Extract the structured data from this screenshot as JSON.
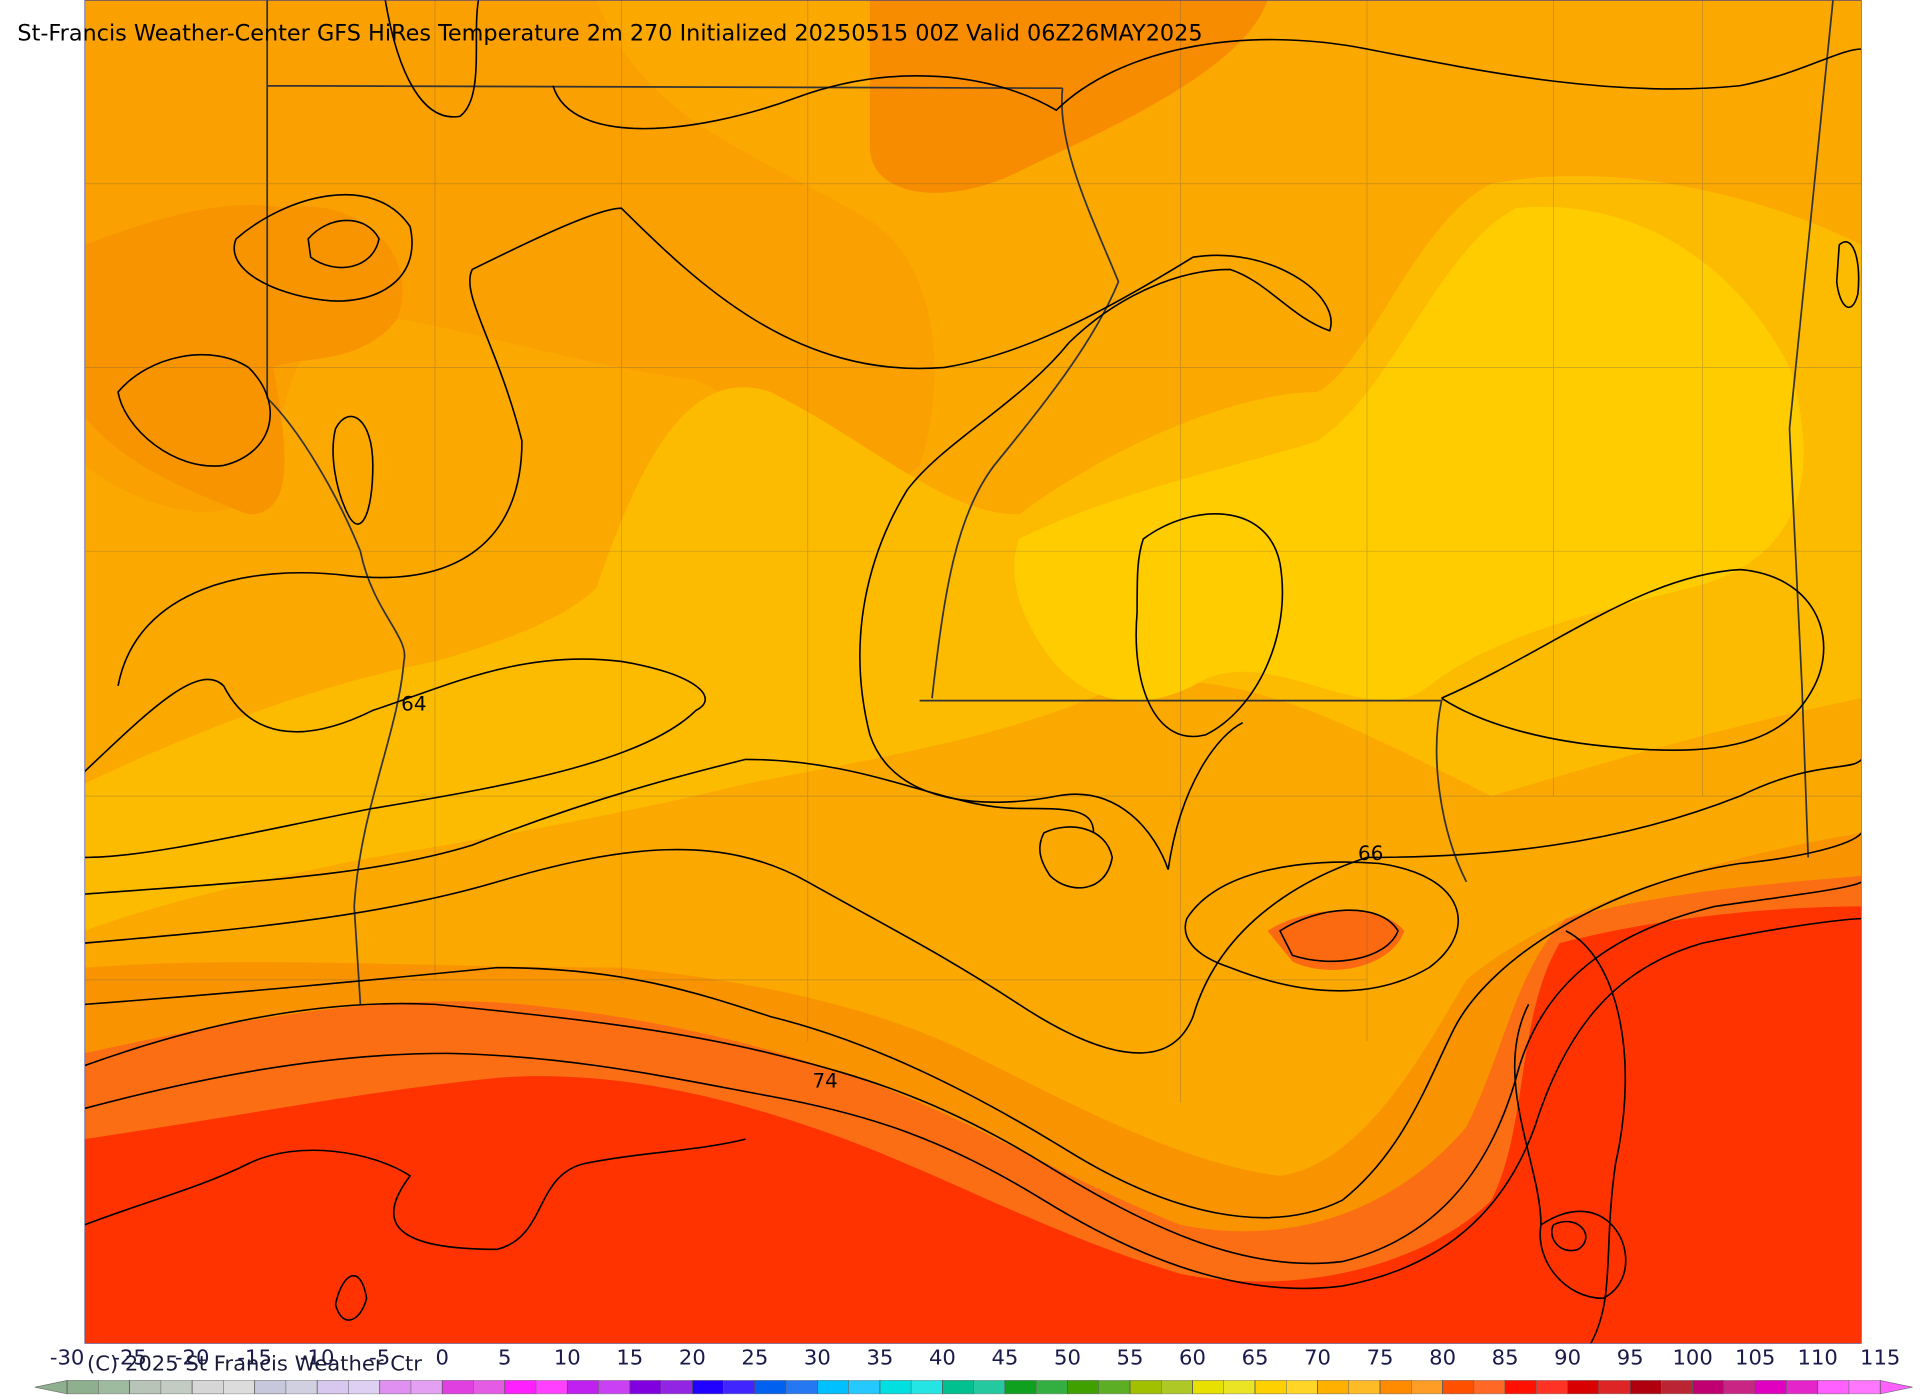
{
  "title": "St-Francis Weather-Center GFS HiRes Temperature 2m  270 Initialized 20250515 00Z Valid 06Z26MAY2025",
  "contour_labels": [
    64,
    66,
    74
  ],
  "copyright": "(C) 2025 St Francis Weather Ctr",
  "colorbar": {
    "ticks": [
      -30,
      -25,
      -20,
      -15,
      -10,
      -5,
      0,
      5,
      10,
      15,
      20,
      25,
      30,
      35,
      40,
      45,
      50,
      55,
      60,
      65,
      70,
      75,
      80,
      85,
      90,
      95,
      100,
      105,
      110,
      115
    ],
    "colors": [
      "#8fb08f",
      "#b8c4b8",
      "#d6d6d6",
      "#c8c8dc",
      "#d8c8f0",
      "#e090f0",
      "#e040e0",
      "#ff20ff",
      "#c020f0",
      "#8000e0",
      "#2000ff",
      "#0060f0",
      "#00c0ff",
      "#00e0e0",
      "#00c090",
      "#10a020",
      "#40a000",
      "#a0c000",
      "#e8e000",
      "#ffd000",
      "#ffb000",
      "#ff8c00",
      "#ff5000",
      "#ff1000",
      "#d80000",
      "#b00010",
      "#c00070",
      "#e000c0",
      "#ff60ff"
    ]
  }
}
